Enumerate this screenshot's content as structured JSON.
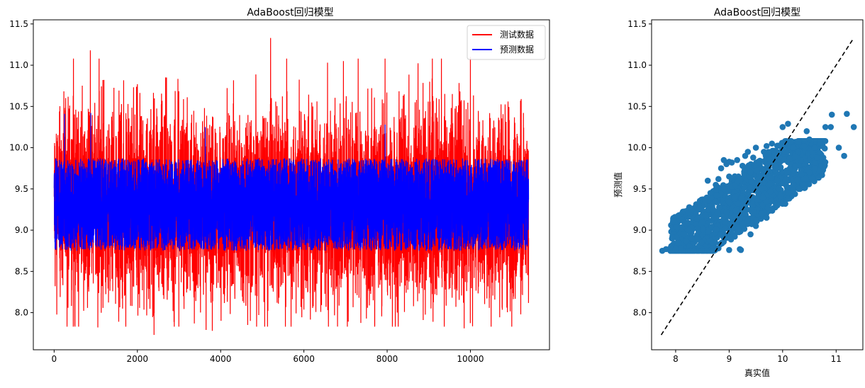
{
  "colors": {
    "test_line": "#ff0000",
    "pred_line": "#0000ff",
    "scatter": "#1f77b4",
    "diag": "#000000"
  },
  "chart_data": [
    {
      "type": "line",
      "title": "AdaBoost回归模型",
      "xlabel": "",
      "ylabel": "",
      "xlim": [
        -500,
        11900
      ],
      "ylim": [
        7.55,
        11.55
      ],
      "xticks": [
        0,
        2000,
        4000,
        6000,
        8000,
        10000
      ],
      "yticks": [
        8.0,
        8.5,
        9.0,
        9.5,
        10.0,
        10.5,
        11.0,
        11.5
      ],
      "n_points": 11400,
      "legend": "top-right",
      "grid": false,
      "series": [
        {
          "name": "测试数据",
          "color": "#ff0000",
          "summary": {
            "min": 7.73,
            "max": 11.33,
            "typical_low": 8.3,
            "typical_high": 10.4,
            "mean": 9.3
          },
          "peaks": [
            {
              "x": 870,
              "y": 11.18
            },
            {
              "x": 1170,
              "y": 10.82
            },
            {
              "x": 2000,
              "y": 10.77
            },
            {
              "x": 2700,
              "y": 10.85
            },
            {
              "x": 5200,
              "y": 11.33
            },
            {
              "x": 6950,
              "y": 11.05
            },
            {
              "x": 7950,
              "y": 11.08
            },
            {
              "x": 10000,
              "y": 11.1
            }
          ],
          "troughs": [
            {
              "x": 1050,
              "y": 7.82
            },
            {
              "x": 2400,
              "y": 7.73
            },
            {
              "x": 3650,
              "y": 7.79
            },
            {
              "x": 3800,
              "y": 7.78
            },
            {
              "x": 4650,
              "y": 7.85
            },
            {
              "x": 7700,
              "y": 7.83
            },
            {
              "x": 9850,
              "y": 7.81
            }
          ]
        },
        {
          "name": "预测数据",
          "color": "#0000ff",
          "summary": {
            "min": 8.75,
            "max": 10.4,
            "typical_low": 8.75,
            "typical_high": 9.87,
            "mean": 9.3
          },
          "peaks": [
            {
              "x": 250,
              "y": 10.41
            },
            {
              "x": 880,
              "y": 10.42
            },
            {
              "x": 3630,
              "y": 10.25
            },
            {
              "x": 7950,
              "y": 10.28
            }
          ]
        }
      ]
    },
    {
      "type": "scatter",
      "title": "AdaBoost回归模型",
      "xlabel": "真实值",
      "ylabel": "预测值",
      "xlim": [
        7.55,
        11.5
      ],
      "ylim": [
        7.55,
        11.55
      ],
      "xticks": [
        8,
        9,
        10,
        11
      ],
      "yticks": [
        8.0,
        8.5,
        9.0,
        9.5,
        10.0,
        10.5,
        11.0,
        11.5
      ],
      "grid": false,
      "diagonal": {
        "from": [
          7.73,
          7.73
        ],
        "to": [
          11.33,
          11.33
        ],
        "style": "dashed"
      },
      "series": [
        {
          "name": "",
          "color": "#1f77b4",
          "points": [
            [
              7.75,
              8.75
            ],
            [
              7.82,
              8.77
            ],
            [
              7.9,
              8.78
            ],
            [
              7.95,
              8.91
            ],
            [
              8.0,
              8.77
            ],
            [
              8.05,
              8.85
            ],
            [
              8.1,
              8.78
            ],
            [
              8.15,
              8.95
            ],
            [
              8.2,
              8.87
            ],
            [
              8.25,
              9.0
            ],
            [
              8.3,
              8.9
            ],
            [
              8.35,
              9.15
            ],
            [
              8.4,
              9.02
            ],
            [
              8.45,
              9.27
            ],
            [
              8.5,
              9.1
            ],
            [
              8.55,
              9.35
            ],
            [
              8.6,
              9.6
            ],
            [
              8.65,
              9.45
            ],
            [
              8.7,
              9.25
            ],
            [
              8.75,
              9.55
            ],
            [
              8.8,
              9.62
            ],
            [
              8.85,
              9.75
            ],
            [
              8.9,
              9.5
            ],
            [
              8.95,
              9.8
            ],
            [
              9.0,
              9.65
            ],
            [
              9.05,
              9.82
            ],
            [
              9.1,
              9.4
            ],
            [
              9.15,
              9.85
            ],
            [
              9.2,
              9.6
            ],
            [
              9.25,
              9.78
            ],
            [
              9.3,
              9.9
            ],
            [
              9.35,
              9.95
            ],
            [
              9.4,
              9.7
            ],
            [
              9.45,
              9.88
            ],
            [
              9.5,
              10.0
            ],
            [
              9.55,
              9.83
            ],
            [
              9.6,
              9.5
            ],
            [
              9.65,
              9.95
            ],
            [
              9.7,
              10.02
            ],
            [
              9.75,
              9.86
            ],
            [
              9.8,
              10.05
            ],
            [
              9.85,
              9.9
            ],
            [
              9.9,
              9.6
            ],
            [
              9.95,
              10.02
            ],
            [
              10.0,
              10.25
            ],
            [
              10.05,
              9.95
            ],
            [
              10.1,
              10.29
            ],
            [
              10.15,
              10.08
            ],
            [
              10.2,
              10.0
            ],
            [
              10.3,
              10.07
            ],
            [
              10.4,
              10.02
            ],
            [
              10.45,
              10.2
            ],
            [
              10.5,
              10.1
            ],
            [
              10.55,
              9.95
            ],
            [
              10.6,
              10.0
            ],
            [
              10.7,
              10.06
            ],
            [
              10.8,
              10.25
            ],
            [
              10.9,
              10.25
            ],
            [
              10.92,
              10.4
            ],
            [
              11.05,
              10.0
            ],
            [
              11.15,
              9.9
            ],
            [
              11.2,
              10.41
            ],
            [
              11.33,
              10.25
            ],
            [
              8.7,
              8.75
            ],
            [
              8.8,
              8.78
            ],
            [
              9.0,
              8.76
            ],
            [
              9.2,
              8.77
            ],
            [
              9.22,
              8.76
            ],
            [
              9.4,
              8.95
            ],
            [
              9.5,
              9.05
            ],
            [
              9.6,
              9.2
            ],
            [
              9.7,
              9.15
            ],
            [
              9.8,
              9.25
            ],
            [
              9.9,
              9.3
            ],
            [
              10.0,
              9.32
            ],
            [
              10.05,
              9.32
            ],
            [
              10.1,
              9.45
            ],
            [
              10.2,
              9.55
            ],
            [
              10.3,
              9.5
            ],
            [
              10.4,
              9.55
            ],
            [
              10.5,
              9.7
            ],
            [
              10.6,
              9.75
            ],
            [
              8.3,
              9.25
            ],
            [
              8.4,
              9.14
            ],
            [
              8.9,
              9.85
            ],
            [
              9.0,
              9.83
            ]
          ]
        }
      ]
    }
  ]
}
